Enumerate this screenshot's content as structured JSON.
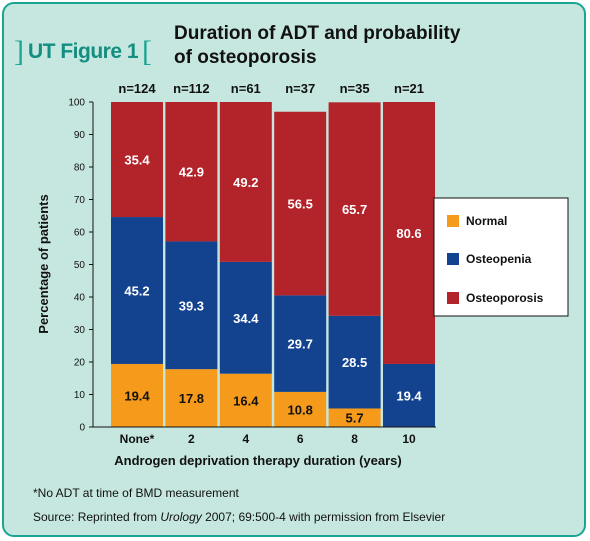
{
  "figure": {
    "badge": "UT Figure 1",
    "title_line1": "Duration of ADT and probability",
    "title_line2": "of osteoporosis"
  },
  "chart_data": {
    "type": "bar",
    "stacked": true,
    "categories": [
      "None*",
      "2",
      "4",
      "6",
      "8",
      "10"
    ],
    "n_labels": [
      "n=124",
      "n=112",
      "n=61",
      "n=37",
      "n=35",
      "n=21"
    ],
    "series": [
      {
        "name": "Normal",
        "color": "#f59a1b",
        "values": [
          19.4,
          17.8,
          16.4,
          10.8,
          5.7,
          0
        ]
      },
      {
        "name": "Osteopenia",
        "color": "#13438f",
        "values": [
          45.2,
          39.3,
          34.4,
          29.7,
          28.5,
          19.4
        ]
      },
      {
        "name": "Osteoporosis",
        "color": "#b3232a",
        "values": [
          35.4,
          42.9,
          49.2,
          56.5,
          65.7,
          80.6
        ]
      }
    ],
    "data_labels": [
      [
        "19.4",
        "17.8",
        "16.4",
        "10.8",
        "5.7",
        ""
      ],
      [
        "45.2",
        "39.3",
        "34.4",
        "29.7",
        "28.5",
        "19.4"
      ],
      [
        "35.4",
        "42.9",
        "49.2",
        "56.5",
        "65.7",
        "80.6"
      ]
    ],
    "xlabel": "Androgen deprivation therapy duration (years)",
    "ylabel": "Percentage of patients",
    "ylim": [
      0,
      100
    ],
    "yticks": [
      "0",
      "10",
      "20",
      "30",
      "40",
      "50",
      "60",
      "70",
      "80",
      "90",
      "100"
    ],
    "grid": false,
    "legend_position": "right"
  },
  "notes": {
    "footnote": "*No ADT at time of BMD measurement",
    "source_prefix": "Source: Reprinted from ",
    "source_journal": "Urology",
    "source_suffix": " 2007; 69:500-4 with permission from Elsevier"
  }
}
